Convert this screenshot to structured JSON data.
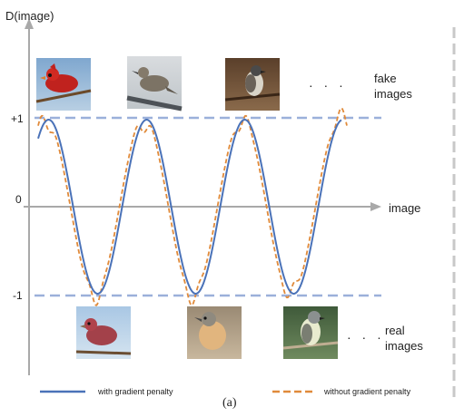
{
  "axis": {
    "y_label": "D(image)",
    "x_label": "image"
  },
  "ticks": {
    "plus_one": "+1",
    "zero": "0",
    "minus_one": "-1"
  },
  "fake_label": {
    "line1": "fake",
    "line2": "images"
  },
  "real_label": {
    "line1": "real",
    "line2": "images"
  },
  "ellipsis": "· · ·",
  "legend": {
    "solid": "with gradient penalty",
    "dashed": "without gradient penalty"
  },
  "caption": "(a)",
  "colors": {
    "solid": "#4a72b8",
    "dashed": "#e08a3a",
    "bounds": "#9bb0da",
    "axis": "#a9a9a9"
  },
  "fake_images": [
    {
      "icon": "red-cardinal-photo-icon"
    },
    {
      "icon": "gray-bird-on-branch-photo-icon"
    },
    {
      "icon": "flycatcher-bird-photo-icon"
    }
  ],
  "real_images": [
    {
      "icon": "house-finch-photo-icon"
    },
    {
      "icon": "tan-bird-photo-icon"
    },
    {
      "icon": "small-gray-bird-photo-icon"
    }
  ]
}
